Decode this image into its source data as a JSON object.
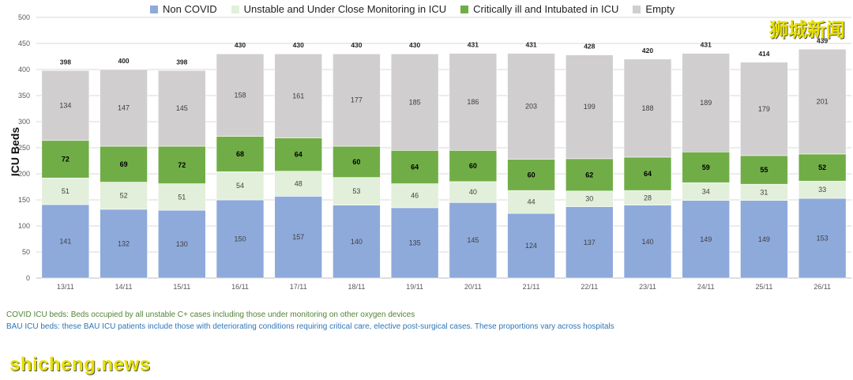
{
  "chart_data": {
    "type": "bar",
    "stacked": true,
    "ylabel": "ICU Beds",
    "ylim": [
      0,
      500
    ],
    "yticks": [
      0,
      50,
      100,
      150,
      200,
      250,
      300,
      350,
      400,
      450,
      500
    ],
    "categories": [
      "13/11",
      "14/11",
      "15/11",
      "16/11",
      "17/11",
      "18/11",
      "19/11",
      "20/11",
      "21/11",
      "22/11",
      "23/11",
      "24/11",
      "25/11",
      "26/11"
    ],
    "series": [
      {
        "name": "Non COVID",
        "color": "#8eaadb",
        "values": [
          141,
          132,
          130,
          150,
          157,
          140,
          135,
          145,
          124,
          137,
          140,
          149,
          149,
          153
        ]
      },
      {
        "name": "Unstable and Under Close Monitoring in ICU",
        "color": "#e2efda",
        "values": [
          51,
          52,
          51,
          54,
          48,
          53,
          46,
          40,
          44,
          30,
          28,
          34,
          31,
          33
        ]
      },
      {
        "name": "Critically ill and Intubated in ICU",
        "color": "#70ad47",
        "values": [
          72,
          69,
          72,
          68,
          64,
          60,
          64,
          60,
          60,
          62,
          64,
          59,
          55,
          52
        ]
      },
      {
        "name": "Empty",
        "color": "#d0cece",
        "values": [
          134,
          147,
          145,
          158,
          161,
          177,
          185,
          186,
          203,
          199,
          188,
          189,
          179,
          201
        ]
      }
    ],
    "totals": [
      398,
      400,
      398,
      430,
      430,
      430,
      430,
      431,
      431,
      428,
      420,
      431,
      414,
      439
    ],
    "legend_position": "top",
    "grid": true
  },
  "footnotes": {
    "covid": "COVID ICU beds: Beds occupied by all unstable C+ cases including those under monitoring on other oxygen devices",
    "bau": "BAU ICU beds: these BAU ICU patients include those with deteriorating conditions requiring critical care, elective post-surgical cases. These proportions vary across hospitals"
  },
  "watermarks": {
    "site": "shicheng.news",
    "brand": "狮城新闻"
  }
}
